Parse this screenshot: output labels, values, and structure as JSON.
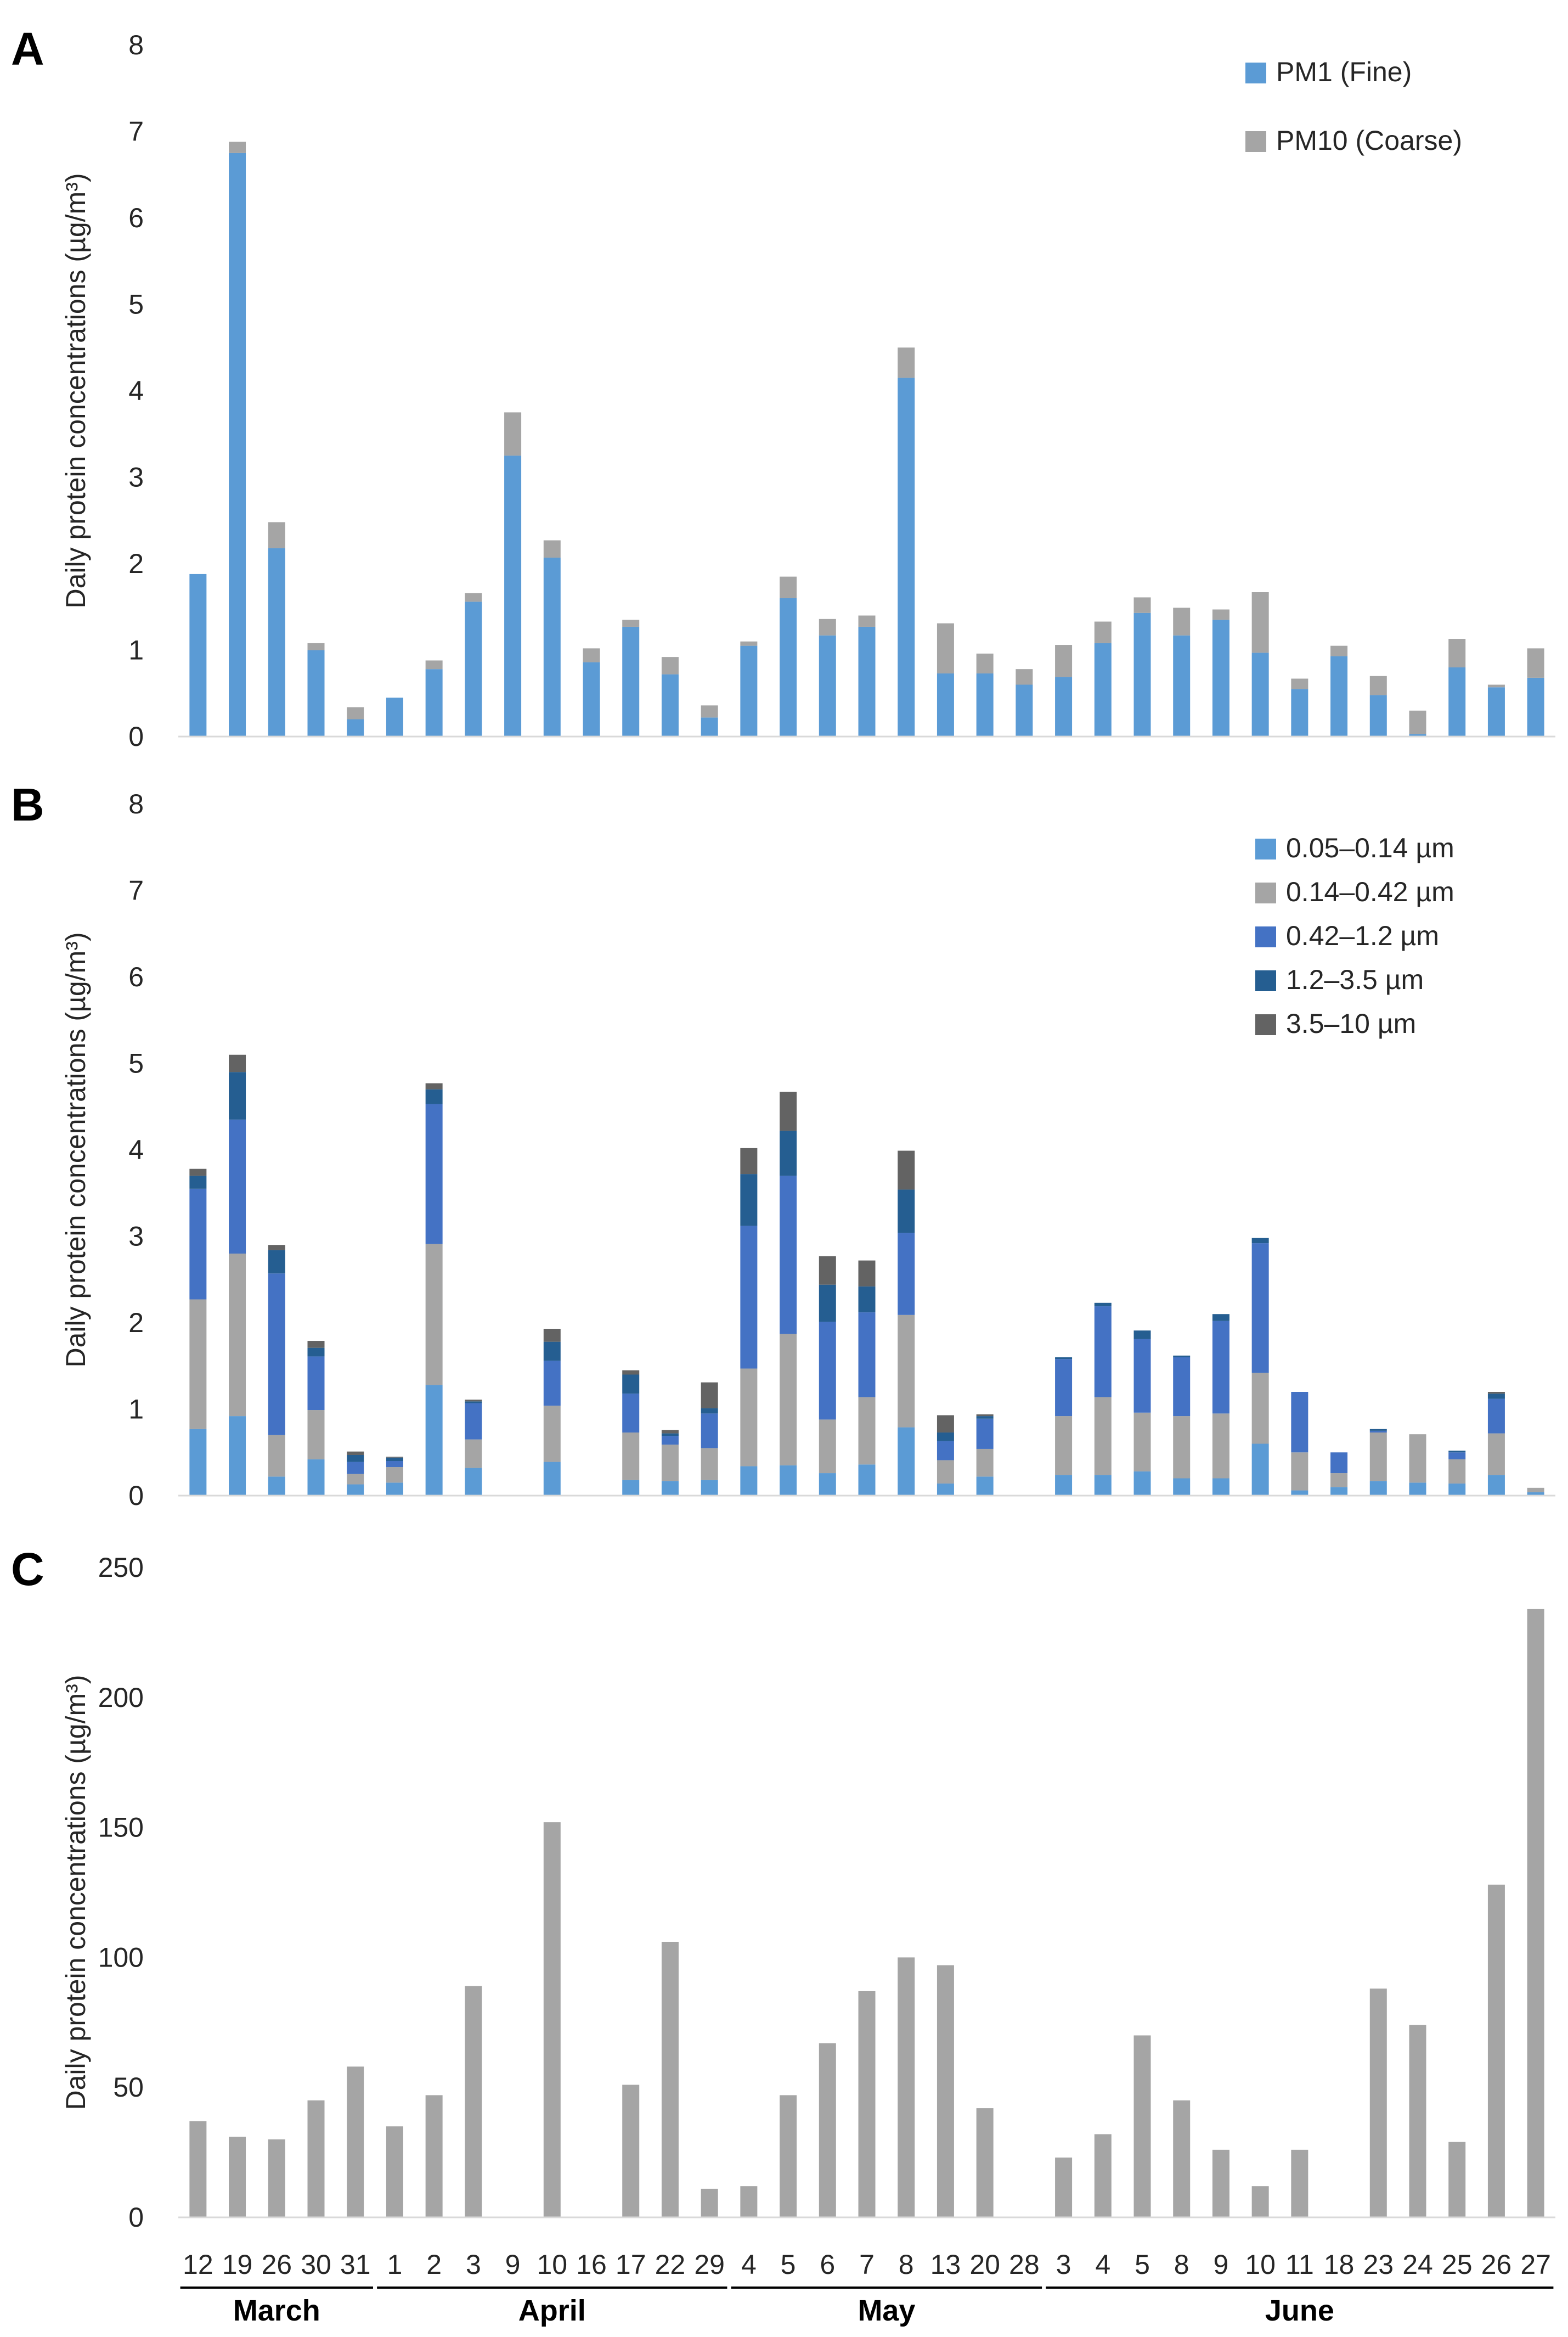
{
  "figure": {
    "panel_letters": [
      "A",
      "B",
      "C"
    ],
    "x_day_labels": [
      "12",
      "19",
      "26",
      "30",
      "31",
      "1",
      "2",
      "3",
      "9",
      "10",
      "16",
      "17",
      "22",
      "29",
      "4",
      "5",
      "6",
      "7",
      "8",
      "13",
      "20",
      "28",
      "3",
      "4",
      "5",
      "8",
      "9",
      "10",
      "11",
      "18",
      "23",
      "24",
      "25",
      "26",
      "27"
    ],
    "months": [
      "March",
      "April",
      "May",
      "June"
    ]
  },
  "chart_data": [
    {
      "type": "bar",
      "stacked": true,
      "panel": "A",
      "ylabel": "Daily protein concentrations (µg/m³)",
      "ylim": [
        0,
        8
      ],
      "yticks": [
        0,
        1,
        2,
        3,
        4,
        5,
        6,
        7,
        8
      ],
      "legend_position": "top-right",
      "series": [
        {
          "name": "PM1 (Fine)",
          "color": "#5b9bd5",
          "values": [
            1.88,
            6.75,
            2.18,
            1.0,
            0.2,
            0.45,
            0.78,
            1.56,
            3.25,
            2.07,
            0.86,
            1.27,
            0.72,
            0.22,
            1.05,
            1.6,
            1.17,
            1.27,
            4.15,
            0.73,
            0.73,
            0.6,
            0.69,
            1.08,
            1.43,
            1.17,
            1.35,
            0.97,
            0.55,
            0.93,
            0.48,
            0.03,
            0.8,
            0.57,
            0.68
          ]
        },
        {
          "name": "PM10 (Coarse)",
          "color": "#a5a5a5",
          "values": [
            0,
            0.13,
            0.3,
            0.08,
            0.14,
            0,
            0.1,
            0.1,
            0.5,
            0.2,
            0.16,
            0.08,
            0.2,
            0.14,
            0.05,
            0.25,
            0.19,
            0.13,
            0.35,
            0.58,
            0.23,
            0.18,
            0.37,
            0.25,
            0.18,
            0.32,
            0.12,
            0.7,
            0.12,
            0.12,
            0.22,
            0.27,
            0.33,
            0.03,
            0.34
          ]
        }
      ]
    },
    {
      "type": "bar",
      "stacked": true,
      "panel": "B",
      "ylabel": "Daily protein concentrations (µg/m³)",
      "ylim": [
        0,
        8
      ],
      "yticks": [
        0,
        1,
        2,
        3,
        4,
        5,
        6,
        7,
        8
      ],
      "legend_position": "top-right",
      "series": [
        {
          "name": "0.05–0.14 µm",
          "color": "#5b9bd5",
          "values": [
            0.77,
            0.92,
            0.22,
            0.42,
            0.13,
            0.15,
            1.28,
            0.32,
            0,
            0.39,
            0,
            0.18,
            0.17,
            0.18,
            0.34,
            0.35,
            0.26,
            0.36,
            0.79,
            0.14,
            0.22,
            0,
            0.24,
            0.24,
            0.28,
            0.2,
            0.2,
            0.6,
            0.06,
            0.1,
            0.17,
            0.15,
            0.14,
            0.24,
            0.04
          ]
        },
        {
          "name": "0.14–0.42 µm",
          "color": "#a5a5a5",
          "values": [
            1.5,
            1.88,
            0.48,
            0.57,
            0.12,
            0.18,
            1.63,
            0.33,
            0,
            0.65,
            0,
            0.55,
            0.42,
            0.37,
            1.13,
            1.52,
            0.62,
            0.78,
            1.3,
            0.27,
            0.32,
            0,
            0.68,
            0.9,
            0.68,
            0.72,
            0.75,
            0.82,
            0.44,
            0.16,
            0.56,
            0.56,
            0.28,
            0.48,
            0.05
          ]
        },
        {
          "name": "0.42–1.2 µm",
          "color": "#4472c4",
          "values": [
            1.28,
            1.55,
            1.87,
            0.62,
            0.14,
            0.07,
            1.62,
            0.42,
            0,
            0.52,
            0,
            0.45,
            0.1,
            0.4,
            1.65,
            1.83,
            1.13,
            0.98,
            0.95,
            0.22,
            0.35,
            0,
            0.66,
            1.05,
            0.85,
            0.68,
            1.07,
            1.5,
            0.7,
            0.24,
            0.02,
            0,
            0.08,
            0.4,
            0
          ]
        },
        {
          "name": "1.2–3.5 µm",
          "color": "#255e91",
          "values": [
            0.15,
            0.55,
            0.27,
            0.1,
            0.08,
            0.04,
            0.17,
            0.02,
            0,
            0.22,
            0,
            0.22,
            0.03,
            0.06,
            0.6,
            0.52,
            0.43,
            0.3,
            0.5,
            0.1,
            0.03,
            0,
            0.02,
            0.04,
            0.1,
            0.02,
            0.08,
            0.06,
            0,
            0,
            0.02,
            0,
            0.02,
            0.06,
            0
          ]
        },
        {
          "name": "3.5–10 µm",
          "color": "#636363",
          "values": [
            0.08,
            0.2,
            0.06,
            0.08,
            0.04,
            0.01,
            0.07,
            0.02,
            0,
            0.15,
            0,
            0.05,
            0.04,
            0.3,
            0.3,
            0.45,
            0.33,
            0.3,
            0.45,
            0.2,
            0.02,
            0,
            0,
            0,
            0,
            0,
            0,
            0,
            0,
            0,
            0,
            0,
            0,
            0.02,
            0
          ]
        }
      ]
    },
    {
      "type": "bar",
      "panel": "C",
      "ylabel": "Daily protein concentrations (µg/m³)",
      "ylim": [
        0,
        250
      ],
      "yticks": [
        0,
        50,
        100,
        150,
        200,
        250
      ],
      "series": [
        {
          "name": "Daily protein concentration",
          "color": "#a5a5a5",
          "values": [
            37,
            31,
            30,
            45,
            58,
            35,
            47,
            89,
            0,
            152,
            0,
            51,
            106,
            11,
            12,
            47,
            67,
            87,
            100,
            97,
            42,
            0,
            23,
            32,
            70,
            45,
            26,
            12,
            26,
            0,
            88,
            74,
            29,
            128,
            234
          ]
        }
      ]
    }
  ]
}
